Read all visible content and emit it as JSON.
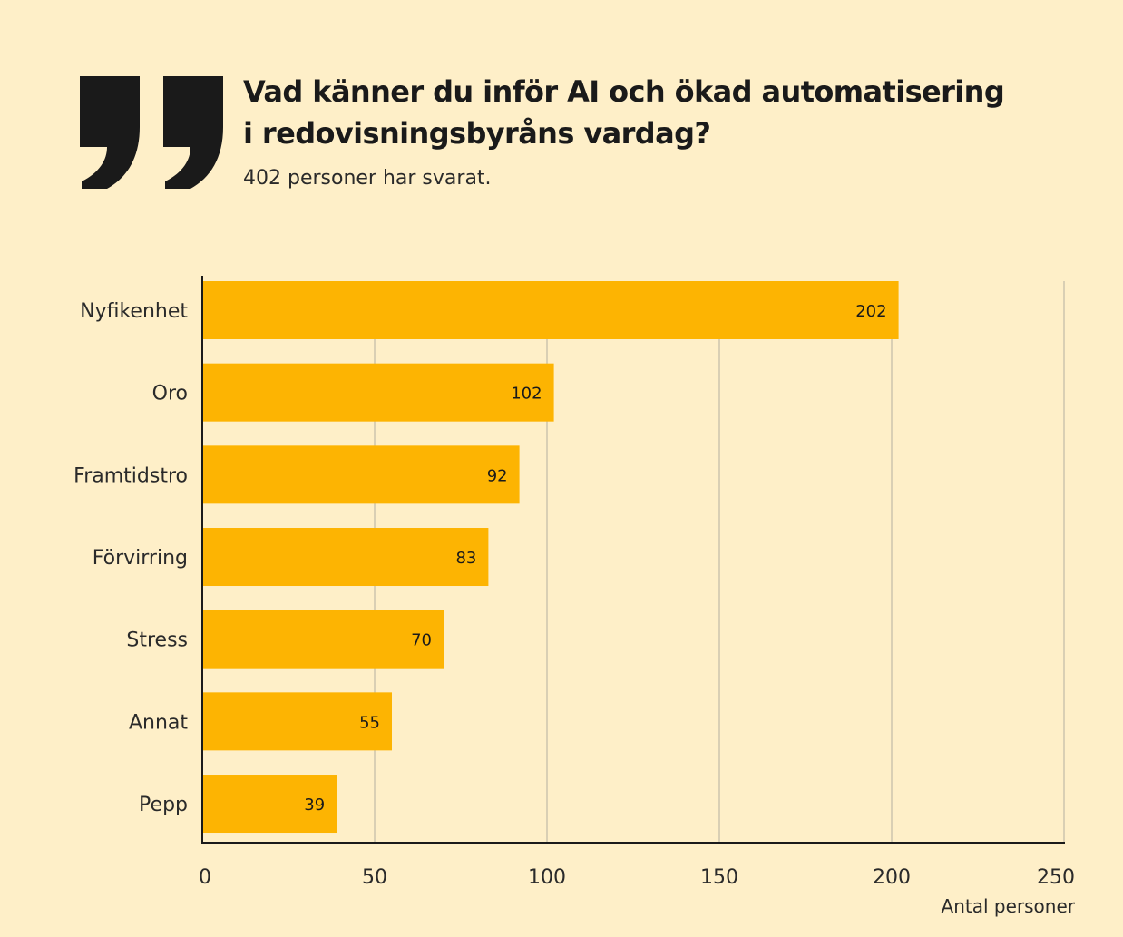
{
  "header": {
    "title_line1": "Vad känner du inför AI och ökad automatisering",
    "title_line2": "i redovisningsbyråns vardag?",
    "subtitle": "402 personer har svarat."
  },
  "colors": {
    "background": "#FEEFC8",
    "bar": "#FDB402",
    "quote_mark": "#1a1a1a",
    "grid": "#D9CFB4",
    "axis": "#1a1a1a"
  },
  "chart_data": {
    "type": "bar",
    "orientation": "horizontal",
    "categories": [
      "Nyfikenhet",
      "Oro",
      "Framtidstro",
      "Förvirring",
      "Stress",
      "Annat",
      "Pepp"
    ],
    "values": [
      202,
      102,
      92,
      83,
      70,
      55,
      39
    ],
    "data_labels": [
      "202",
      "102",
      "92",
      "83",
      "70",
      "55",
      "39"
    ],
    "xlim": [
      0,
      250
    ],
    "xticks": [
      0,
      50,
      100,
      150,
      200,
      250
    ],
    "xlabel": "Antal personer",
    "grid": "vertical"
  }
}
